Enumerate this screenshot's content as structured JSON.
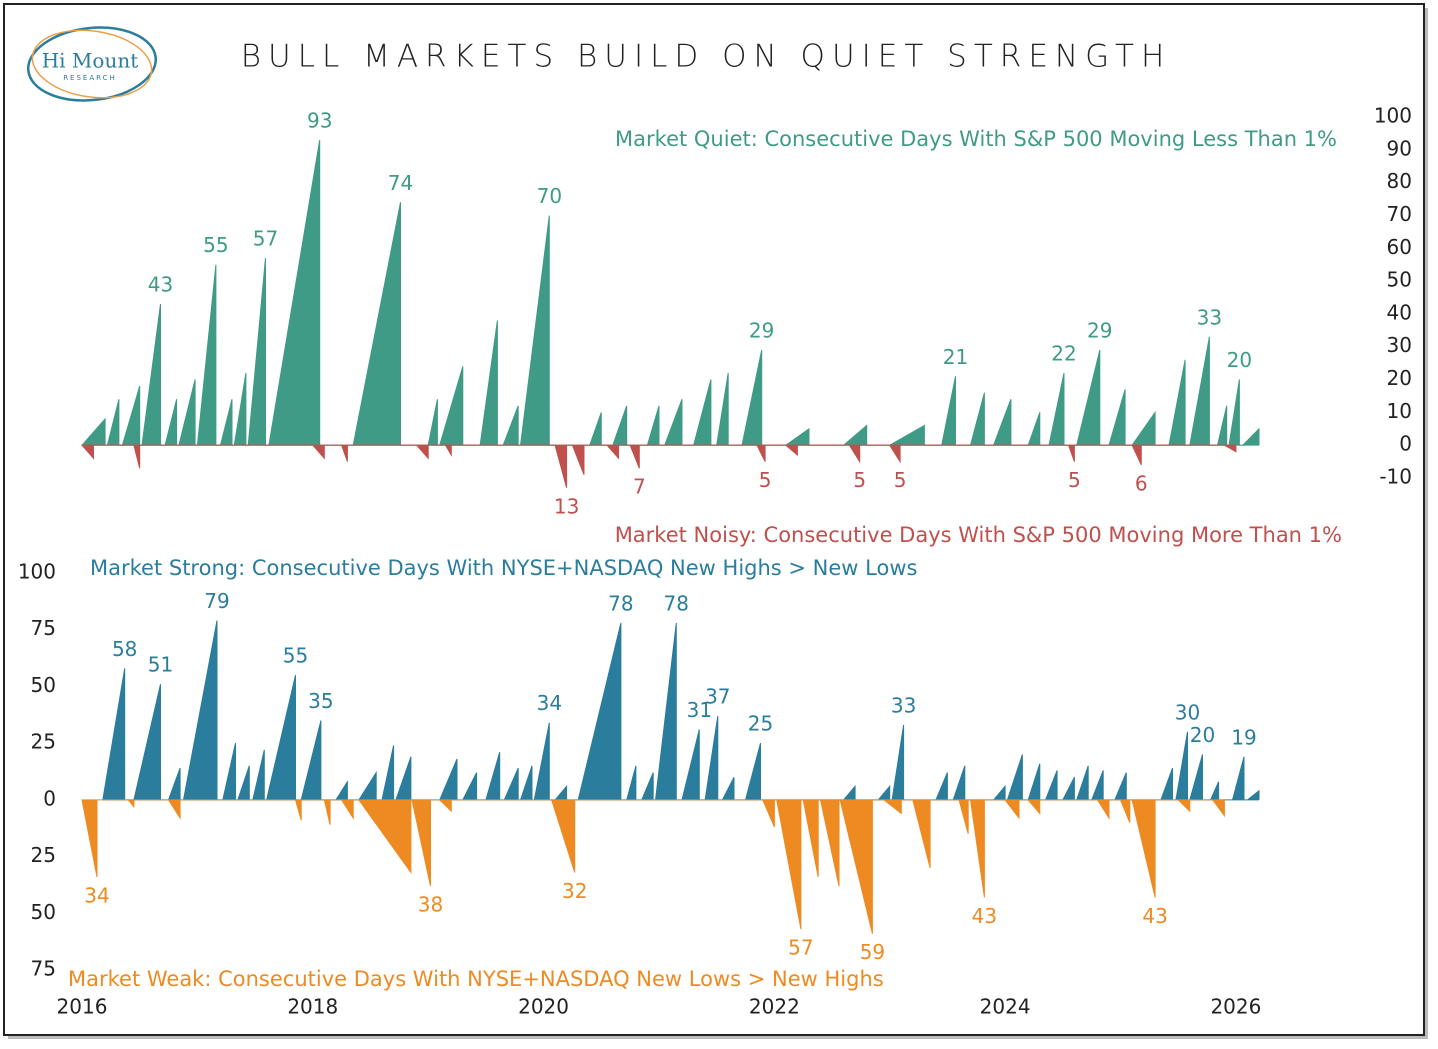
{
  "title": "BULL MARKETS BUILD ON QUIET STRENGTH",
  "logo": {
    "name": "Hi Mount",
    "tagline": "RESEARCH"
  },
  "chart_data": [
    {
      "type": "area",
      "yaxis_position": "right",
      "xlim": [
        2016,
        2026.2
      ],
      "ylim": [
        -10,
        100
      ],
      "yticks": [
        100,
        90,
        80,
        70,
        60,
        50,
        40,
        30,
        20,
        10,
        0,
        -10
      ],
      "series": [
        {
          "name": "Market Quiet: Consecutive Days With S&P 500 Moving Less Than 1%",
          "color": "#3f9b85",
          "x": [
            2016.0,
            2016.2,
            2016.2,
            2016.22,
            2016.32,
            2016.32,
            2016.35,
            2016.5,
            2016.5,
            2016.52,
            2016.68,
            2016.68,
            2016.72,
            2016.82,
            2016.82,
            2016.84,
            2016.98,
            2016.98,
            2017.0,
            2017.16,
            2017.16,
            2017.2,
            2017.3,
            2017.3,
            2017.32,
            2017.42,
            2017.42,
            2017.44,
            2017.59,
            2017.59,
            2017.62,
            2018.06,
            2018.06,
            2018.35,
            2018.76,
            2018.76,
            2019.0,
            2019.08,
            2019.08,
            2019.1,
            2019.3,
            2019.3,
            2019.45,
            2019.6,
            2019.6,
            2019.65,
            2019.78,
            2019.78,
            2019.8,
            2020.05,
            2020.05,
            2020.4,
            2020.5,
            2020.5,
            2020.6,
            2020.72,
            2020.72,
            2020.9,
            2021.0,
            2021.0,
            2021.05,
            2021.2,
            2021.2,
            2021.3,
            2021.45,
            2021.45,
            2021.5,
            2021.6,
            2021.6,
            2021.72,
            2021.89,
            2021.89,
            2022.1,
            2022.3,
            2022.3,
            2022.6,
            2022.8,
            2022.8,
            2023.0,
            2023.3,
            2023.3,
            2023.45,
            2023.57,
            2023.57,
            2023.7,
            2023.82,
            2023.82,
            2023.9,
            2024.05,
            2024.05,
            2024.2,
            2024.3,
            2024.3,
            2024.38,
            2024.51,
            2024.51,
            2024.62,
            2024.82,
            2024.82,
            2024.9,
            2025.04,
            2025.04,
            2025.1,
            2025.3,
            2025.3,
            2025.42,
            2025.56,
            2025.56,
            2025.6,
            2025.77,
            2025.77,
            2025.84,
            2025.92,
            2025.92,
            2025.94,
            2026.03,
            2026.03,
            2026.06,
            2026.2,
            2026.2
          ],
          "values": [
            0,
            8,
            0,
            0,
            14,
            0,
            0,
            18,
            0,
            0,
            43,
            0,
            0,
            14,
            0,
            0,
            20,
            0,
            0,
            55,
            0,
            0,
            14,
            0,
            0,
            22,
            0,
            0,
            57,
            0,
            0,
            93,
            0,
            0,
            74,
            0,
            0,
            14,
            0,
            0,
            24,
            0,
            0,
            38,
            0,
            0,
            12,
            0,
            0,
            70,
            0,
            0,
            10,
            0,
            0,
            12,
            0,
            0,
            12,
            0,
            0,
            14,
            0,
            0,
            20,
            0,
            0,
            22,
            0,
            0,
            29,
            0,
            0,
            5,
            0,
            0,
            6,
            0,
            0,
            6,
            0,
            0,
            21,
            0,
            0,
            16,
            0,
            0,
            14,
            0,
            0,
            10,
            0,
            0,
            22,
            0,
            0,
            29,
            0,
            0,
            17,
            0,
            0,
            10,
            0,
            0,
            26,
            0,
            0,
            33,
            0,
            0,
            12,
            0,
            0,
            20,
            0,
            0,
            5,
            0
          ],
          "peaks": [
            {
              "x": 2016.68,
              "value": 43
            },
            {
              "x": 2017.16,
              "value": 55
            },
            {
              "x": 2017.59,
              "value": 57
            },
            {
              "x": 2018.06,
              "value": 93
            },
            {
              "x": 2018.76,
              "value": 74
            },
            {
              "x": 2020.05,
              "value": 70
            },
            {
              "x": 2021.89,
              "value": 29
            },
            {
              "x": 2023.57,
              "value": 21
            },
            {
              "x": 2024.51,
              "value": 22
            },
            {
              "x": 2024.82,
              "value": 29
            },
            {
              "x": 2025.77,
              "value": 33
            },
            {
              "x": 2026.03,
              "value": 20
            }
          ]
        },
        {
          "name": "Market Noisy: Consecutive Days With S&P 500 Moving More Than 1%",
          "color": "#c0504d",
          "x": [
            2016.0,
            2016.1,
            2016.1,
            2016.45,
            2016.5,
            2016.5,
            2018.0,
            2018.1,
            2018.1,
            2018.25,
            2018.3,
            2018.3,
            2018.9,
            2019.0,
            2019.0,
            2019.15,
            2019.2,
            2019.2,
            2020.1,
            2020.2,
            2020.2,
            2020.25,
            2020.35,
            2020.35,
            2020.55,
            2020.65,
            2020.65,
            2020.75,
            2020.83,
            2020.83,
            2021.85,
            2021.92,
            2021.92,
            2022.1,
            2022.2,
            2022.2,
            2022.65,
            2022.74,
            2022.74,
            2023.0,
            2023.09,
            2023.09,
            2024.55,
            2024.6,
            2024.6,
            2025.1,
            2025.18,
            2025.18,
            2025.9,
            2026.0,
            2026.0
          ],
          "values": [
            0,
            -4,
            0,
            0,
            -7,
            0,
            0,
            -4,
            0,
            0,
            -5,
            0,
            0,
            -4,
            0,
            0,
            -3,
            0,
            0,
            -13,
            0,
            0,
            -9,
            0,
            0,
            -4,
            0,
            0,
            -7,
            0,
            0,
            -5,
            0,
            0,
            -3,
            0,
            0,
            -5,
            0,
            0,
            -5,
            0,
            0,
            -5,
            0,
            0,
            -6,
            0,
            0,
            -2,
            0
          ],
          "peaks": [
            {
              "x": 2020.2,
              "value": -13,
              "label": "13"
            },
            {
              "x": 2020.83,
              "value": -7,
              "label": "7"
            },
            {
              "x": 2021.92,
              "value": -5,
              "label": "5"
            },
            {
              "x": 2022.74,
              "value": -5,
              "label": "5"
            },
            {
              "x": 2023.09,
              "value": -5,
              "label": "5"
            },
            {
              "x": 2024.6,
              "value": -5,
              "label": "5"
            },
            {
              "x": 2025.18,
              "value": -6,
              "label": "6"
            }
          ]
        }
      ]
    },
    {
      "type": "area",
      "yaxis_position": "left",
      "xlim": [
        2016,
        2026.2
      ],
      "ylim": [
        -75,
        100
      ],
      "yticks": [
        100,
        75,
        50,
        25,
        0,
        {
          "value": -25,
          "label": "25"
        },
        {
          "value": -50,
          "label": "50"
        },
        {
          "value": -75,
          "label": "75"
        }
      ],
      "xticks": [
        2016,
        2018,
        2020,
        2022,
        2024,
        2026
      ],
      "series": [
        {
          "name": "Market Strong: Consecutive Days With NYSE+NASDAQ New Highs > New Lows",
          "color": "#2a7d9c",
          "x": [
            2016.18,
            2016.37,
            2016.37,
            2016.45,
            2016.68,
            2016.68,
            2016.75,
            2016.85,
            2016.85,
            2016.88,
            2017.17,
            2017.17,
            2017.22,
            2017.33,
            2017.33,
            2017.35,
            2017.45,
            2017.45,
            2017.48,
            2017.58,
            2017.58,
            2017.6,
            2017.85,
            2017.85,
            2017.9,
            2018.07,
            2018.07,
            2018.2,
            2018.3,
            2018.3,
            2018.4,
            2018.55,
            2018.55,
            2018.6,
            2018.7,
            2018.7,
            2018.72,
            2018.85,
            2018.85,
            2019.1,
            2019.25,
            2019.25,
            2019.3,
            2019.42,
            2019.42,
            2019.5,
            2019.62,
            2019.62,
            2019.66,
            2019.78,
            2019.78,
            2019.8,
            2019.9,
            2019.9,
            2019.92,
            2020.05,
            2020.05,
            2020.1,
            2020.2,
            2020.2,
            2020.3,
            2020.67,
            2020.67,
            2020.72,
            2020.8,
            2020.8,
            2020.85,
            2020.95,
            2020.95,
            2020.97,
            2021.15,
            2021.15,
            2021.2,
            2021.35,
            2021.35,
            2021.4,
            2021.51,
            2021.51,
            2021.55,
            2021.65,
            2021.65,
            2021.75,
            2021.88,
            2021.88,
            2022.6,
            2022.7,
            2022.7,
            2022.9,
            2023.0,
            2023.0,
            2023.02,
            2023.12,
            2023.12,
            2023.4,
            2023.5,
            2023.5,
            2023.55,
            2023.65,
            2023.65,
            2023.9,
            2024.0,
            2024.0,
            2024.02,
            2024.15,
            2024.15,
            2024.2,
            2024.3,
            2024.3,
            2024.35,
            2024.45,
            2024.45,
            2024.5,
            2024.6,
            2024.6,
            2024.62,
            2024.72,
            2024.72,
            2024.75,
            2024.85,
            2024.85,
            2024.95,
            2025.05,
            2025.05,
            2025.35,
            2025.45,
            2025.45,
            2025.48,
            2025.58,
            2025.58,
            2025.6,
            2025.71,
            2025.71,
            2025.78,
            2025.85,
            2025.85,
            2025.97,
            2026.07,
            2026.07,
            2026.1,
            2026.2,
            2026.2
          ],
          "values": [
            0,
            58,
            0,
            0,
            51,
            0,
            0,
            14,
            0,
            0,
            79,
            0,
            0,
            25,
            0,
            0,
            15,
            0,
            0,
            22,
            0,
            0,
            55,
            0,
            0,
            35,
            0,
            0,
            8,
            0,
            0,
            12,
            0,
            0,
            24,
            0,
            0,
            19,
            0,
            0,
            18,
            0,
            0,
            12,
            0,
            0,
            21,
            0,
            0,
            14,
            0,
            0,
            15,
            0,
            0,
            34,
            0,
            0,
            6,
            0,
            0,
            78,
            0,
            0,
            15,
            0,
            0,
            12,
            0,
            0,
            78,
            0,
            0,
            31,
            0,
            0,
            37,
            0,
            0,
            10,
            0,
            0,
            25,
            0,
            0,
            6,
            0,
            0,
            6,
            0,
            0,
            33,
            0,
            0,
            12,
            0,
            0,
            15,
            0,
            0,
            6,
            0,
            0,
            20,
            0,
            0,
            16,
            0,
            0,
            13,
            0,
            0,
            10,
            0,
            0,
            15,
            0,
            0,
            13,
            0,
            0,
            12,
            0,
            0,
            14,
            0,
            0,
            30,
            0,
            0,
            20,
            0,
            0,
            8,
            0,
            0,
            19,
            0,
            0,
            4,
            0
          ],
          "peaks": [
            {
              "x": 2016.37,
              "value": 58
            },
            {
              "x": 2016.68,
              "value": 51
            },
            {
              "x": 2017.17,
              "value": 79
            },
            {
              "x": 2017.85,
              "value": 55
            },
            {
              "x": 2018.07,
              "value": 35
            },
            {
              "x": 2020.05,
              "value": 34
            },
            {
              "x": 2020.67,
              "value": 78
            },
            {
              "x": 2021.15,
              "value": 78
            },
            {
              "x": 2021.35,
              "value": 31
            },
            {
              "x": 2021.51,
              "value": 37
            },
            {
              "x": 2021.88,
              "value": 25
            },
            {
              "x": 2023.12,
              "value": 33
            },
            {
              "x": 2025.58,
              "value": 30
            },
            {
              "x": 2025.71,
              "value": 20
            },
            {
              "x": 2026.07,
              "value": 19
            }
          ]
        },
        {
          "name": "Market Weak: Consecutive Days With NYSE+NASDAQ New Lows > New Highs",
          "color": "#ee8a22",
          "x": [
            2016.0,
            2016.13,
            2016.13,
            2016.4,
            2016.45,
            2016.45,
            2016.75,
            2016.85,
            2016.85,
            2017.85,
            2017.9,
            2017.9,
            2018.1,
            2018.15,
            2018.15,
            2018.25,
            2018.35,
            2018.35,
            2018.4,
            2018.85,
            2018.85,
            2018.86,
            2019.02,
            2019.02,
            2019.1,
            2019.2,
            2019.2,
            2020.07,
            2020.27,
            2020.27,
            2021.9,
            2022.0,
            2022.0,
            2022.02,
            2022.23,
            2022.23,
            2022.25,
            2022.38,
            2022.38,
            2022.4,
            2022.56,
            2022.56,
            2022.57,
            2022.85,
            2022.85,
            2022.95,
            2023.1,
            2023.1,
            2023.2,
            2023.35,
            2023.35,
            2023.6,
            2023.68,
            2023.68,
            2023.7,
            2023.82,
            2023.82,
            2024.0,
            2024.12,
            2024.12,
            2024.2,
            2024.3,
            2024.3,
            2024.8,
            2024.9,
            2024.9,
            2025.0,
            2025.08,
            2025.08,
            2025.1,
            2025.3,
            2025.3,
            2025.5,
            2025.6,
            2025.6,
            2025.8,
            2025.9,
            2025.9
          ],
          "values": [
            0,
            -34,
            0,
            0,
            -3,
            0,
            0,
            -8,
            0,
            0,
            -9,
            0,
            0,
            -11,
            0,
            0,
            -8,
            0,
            0,
            -32,
            0,
            0,
            -38,
            0,
            0,
            -5,
            0,
            0,
            -32,
            0,
            0,
            -12,
            0,
            0,
            -57,
            0,
            0,
            -34,
            0,
            0,
            -38,
            0,
            0,
            -59,
            0,
            0,
            -6,
            0,
            0,
            -30,
            0,
            0,
            -15,
            0,
            0,
            -43,
            0,
            0,
            -8,
            0,
            0,
            -6,
            0,
            0,
            -8,
            0,
            0,
            -10,
            0,
            0,
            -43,
            0,
            0,
            -5,
            0,
            0,
            -7,
            0
          ],
          "peaks": [
            {
              "x": 2016.13,
              "value": -34,
              "label": "34"
            },
            {
              "x": 2019.02,
              "value": -38,
              "label": "38"
            },
            {
              "x": 2020.27,
              "value": -32,
              "label": "32"
            },
            {
              "x": 2022.23,
              "value": -57,
              "label": "57"
            },
            {
              "x": 2022.85,
              "value": -59,
              "label": "59"
            },
            {
              "x": 2023.82,
              "value": -43,
              "label": "43"
            },
            {
              "x": 2025.3,
              "value": -43,
              "label": "43"
            }
          ]
        }
      ]
    }
  ]
}
